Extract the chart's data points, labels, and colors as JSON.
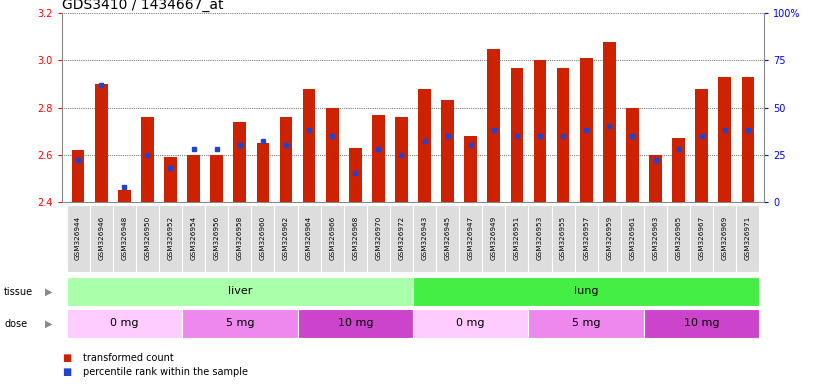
{
  "title": "GDS3410 / 1434667_at",
  "samples": [
    "GSM326944",
    "GSM326946",
    "GSM326948",
    "GSM326950",
    "GSM326952",
    "GSM326954",
    "GSM326956",
    "GSM326958",
    "GSM326960",
    "GSM326962",
    "GSM326964",
    "GSM326966",
    "GSM326968",
    "GSM326970",
    "GSM326972",
    "GSM326943",
    "GSM326945",
    "GSM326947",
    "GSM326949",
    "GSM326951",
    "GSM326953",
    "GSM326955",
    "GSM326957",
    "GSM326959",
    "GSM326961",
    "GSM326963",
    "GSM326965",
    "GSM326967",
    "GSM326969",
    "GSM326971"
  ],
  "transformed_count": [
    2.62,
    2.9,
    2.45,
    2.76,
    2.59,
    2.6,
    2.6,
    2.74,
    2.65,
    2.76,
    2.88,
    2.8,
    2.63,
    2.77,
    2.76,
    2.88,
    2.83,
    2.68,
    3.05,
    2.97,
    3.0,
    2.97,
    3.01,
    3.08,
    2.8,
    2.6,
    2.67,
    2.88,
    2.93,
    2.93
  ],
  "percentile_rank": [
    22,
    62,
    8,
    25,
    18,
    28,
    28,
    30,
    32,
    30,
    38,
    35,
    15,
    28,
    25,
    32,
    35,
    30,
    38,
    35,
    35,
    35,
    38,
    40,
    35,
    22,
    28,
    35,
    38,
    38
  ],
  "tissue_groups": [
    {
      "label": "liver",
      "start": 0,
      "end": 15,
      "color": "#aaffaa"
    },
    {
      "label": "lung",
      "start": 15,
      "end": 30,
      "color": "#44ee44"
    }
  ],
  "dose_groups": [
    {
      "label": "0 mg",
      "start": 0,
      "end": 5,
      "color": "#ffccff"
    },
    {
      "label": "5 mg",
      "start": 5,
      "end": 10,
      "color": "#ee88ee"
    },
    {
      "label": "10 mg",
      "start": 10,
      "end": 15,
      "color": "#cc44cc"
    },
    {
      "label": "0 mg",
      "start": 15,
      "end": 20,
      "color": "#ffccff"
    },
    {
      "label": "5 mg",
      "start": 20,
      "end": 25,
      "color": "#ee88ee"
    },
    {
      "label": "10 mg",
      "start": 25,
      "end": 30,
      "color": "#cc44cc"
    }
  ],
  "ylim_left": [
    2.4,
    3.2
  ],
  "ylim_right": [
    0,
    100
  ],
  "yticks_left": [
    2.4,
    2.6,
    2.8,
    3.0,
    3.2
  ],
  "yticks_right": [
    0,
    25,
    50,
    75,
    100
  ],
  "bar_color": "#cc2200",
  "percentile_color": "#2244cc",
  "bg_color": "#ffffff",
  "tick_fontsize": 7,
  "label_fontsize": 8,
  "title_fontsize": 10
}
